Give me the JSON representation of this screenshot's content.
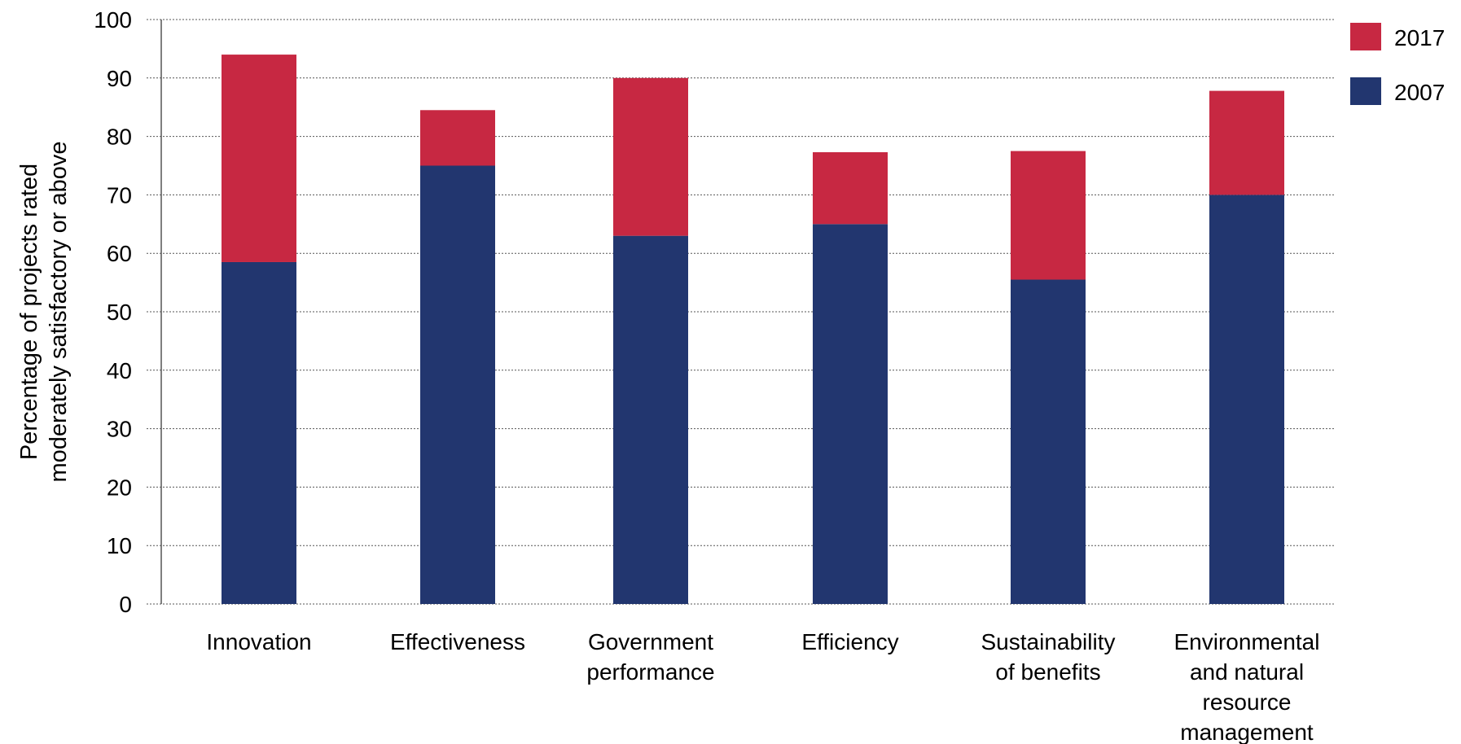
{
  "chart_data": {
    "type": "bar",
    "stacked": true,
    "categories": [
      [
        "Innovation"
      ],
      [
        "Effectiveness"
      ],
      [
        "Government",
        "performance"
      ],
      [
        "Efficiency"
      ],
      [
        "Sustainability",
        "of benefits"
      ],
      [
        "Environmental",
        "and natural",
        "resource",
        "management"
      ]
    ],
    "series": [
      {
        "name": "2007",
        "color": "#22366f",
        "values": [
          58.5,
          75,
          63,
          65,
          55.5,
          70
        ]
      },
      {
        "name": "2017",
        "color": "#c72842",
        "values": [
          35.5,
          9.5,
          27,
          12.3,
          22,
          17.8
        ]
      }
    ],
    "ylabel": [
      "Percentage of projects rated",
      "moderately satisfactory or above"
    ],
    "xlabel": "",
    "ylim": [
      0,
      100
    ],
    "yticks": [
      "0",
      "10",
      "20",
      "30",
      "40",
      "50",
      "60",
      "70",
      "80",
      "90",
      "100"
    ],
    "grid": "horizontal dotted",
    "legend": {
      "placement": "top-right",
      "entries": [
        "2017",
        "2007"
      ]
    }
  }
}
